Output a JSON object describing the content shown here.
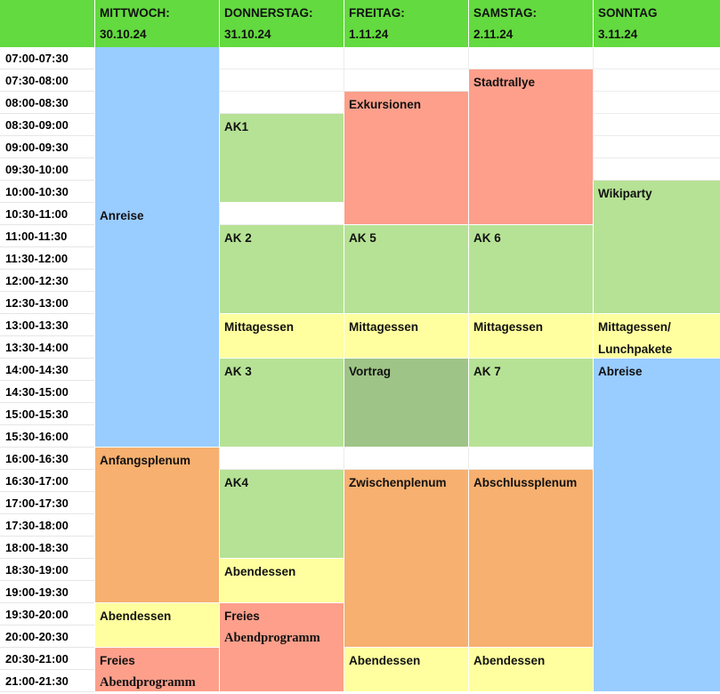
{
  "days": [
    {
      "name": "MITTWOCH:",
      "date": "30.10.24"
    },
    {
      "name": "DONNERSTAG:",
      "date": "31.10.24"
    },
    {
      "name": "FREITAG:",
      "date": "1.11.24"
    },
    {
      "name": "SAMSTAG:",
      "date": "2.11.24"
    },
    {
      "name": "SONNTAG",
      "date": "3.11.24"
    }
  ],
  "times": [
    "07:00-07:30",
    "07:30-08:00",
    "08:00-08:30",
    "08:30-09:00",
    "09:00-09:30",
    "09:30-10:00",
    "10:00-10:30",
    "10:30-11:00",
    "11:00-11:30",
    "11:30-12:00",
    "12:00-12:30",
    "12:30-13:00",
    "13:00-13:30",
    "13:30-14:00",
    "14:00-14:30",
    "14:30-15:00",
    "15:00-15:30",
    "15:30-16:00",
    "16:00-16:30",
    "16:30-17:00",
    "17:00-17:30",
    "17:30-18:00",
    "18:00-18:30",
    "18:30-19:00",
    "19:00-19:30",
    "19:30-20:00",
    "20:00-20:30",
    "20:30-21:00",
    "21:00-21:30"
  ],
  "colors": {
    "header": "#63da3f",
    "travel": "#99ccff",
    "workshop": "#b6e295",
    "talk": "#9fc487",
    "excursion": "#fd9f8b",
    "plenum": "#f7b06f",
    "meal": "#ffff9f"
  },
  "events": {
    "wed_arrival": "Anreise",
    "wed_opening": "Anfangsplenum",
    "wed_dinner": "Abendessen",
    "wed_free_1": "Freies",
    "wed_free_2": "Abendprogramm",
    "thu_ak1": "AK1",
    "thu_ak2": "AK 2",
    "thu_lunch": "Mittagessen",
    "thu_ak3": "AK 3",
    "thu_ak4": "AK4",
    "thu_dinner": "Abendessen",
    "thu_free_1": "Freies",
    "thu_free_2": "Abendprogramm",
    "fri_excursions": "Exkursionen",
    "fri_ak5": "AK 5",
    "fri_lunch": "Mittagessen",
    "fri_talk": "Vortrag",
    "fri_midplenum": "Zwischenplenum",
    "fri_dinner": "Abendessen",
    "sat_rally": "Stadtrallye",
    "sat_ak6": "AK 6",
    "sat_lunch": "Mittagessen",
    "sat_ak7": "AK 7",
    "sat_closing": "Abschlussplenum",
    "sat_dinner": "Abendessen",
    "sun_wikiparty": "Wikiparty",
    "sun_lunch_1": "Mittagessen/",
    "sun_lunch_2": "Lunchpakete",
    "sun_departure": "Abreise"
  }
}
